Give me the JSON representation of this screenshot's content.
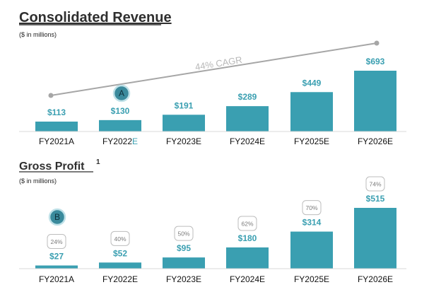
{
  "colors": {
    "bar": "#3a9fb1",
    "value_label": "#3a9fb1",
    "axis": "#d9d9d9",
    "cagr_line": "#a6a6a6",
    "cagr_text": "#b8b8b8",
    "marker_fill": "#3a8a9c",
    "marker_ring": "#bfe1e8",
    "pct_border": "#bdbdbd",
    "highlight_letter": "#3a9fb1"
  },
  "chart_data": [
    {
      "type": "bar",
      "title": "Consolidated Revenue",
      "subtitle": "($ in millions)",
      "categories": [
        "FY2021A",
        "FY2022E",
        "FY2023E",
        "FY2024E",
        "FY2025E",
        "FY2026E"
      ],
      "values": [
        113,
        130,
        191,
        289,
        449,
        693
      ],
      "value_labels": [
        "$113",
        "$130",
        "$191",
        "$289",
        "$449",
        "$693"
      ],
      "ylim": [
        0,
        693
      ],
      "annotations": {
        "trend_label": "44% CAGR",
        "marker": {
          "label": "A",
          "category": "FY2022E"
        }
      }
    },
    {
      "type": "bar",
      "title": "Gross Profit",
      "title_superscript": "1",
      "subtitle": "($ in millions)",
      "categories": [
        "FY2021A",
        "FY2022E",
        "FY2023E",
        "FY2024E",
        "FY2025E",
        "FY2026E"
      ],
      "values": [
        27,
        52,
        95,
        180,
        314,
        515
      ],
      "value_labels": [
        "$27",
        "$52",
        "$95",
        "$180",
        "$314",
        "$515"
      ],
      "margin_labels": [
        "24%",
        "40%",
        "50%",
        "62%",
        "70%",
        "74%"
      ],
      "ylim": [
        0,
        515
      ],
      "annotations": {
        "marker": {
          "label": "B",
          "category": "FY2021A"
        }
      }
    }
  ]
}
